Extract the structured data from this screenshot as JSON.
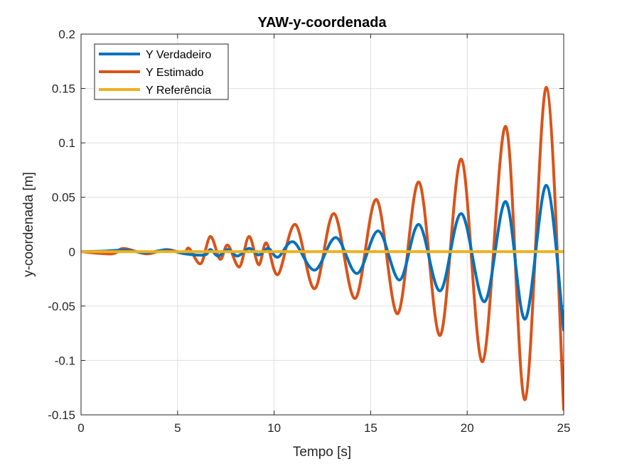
{
  "chart_data": {
    "type": "line",
    "title": "YAW-y-coordenada",
    "xlabel": "Tempo [s]",
    "ylabel": "y-coordenada [m]",
    "xlim": [
      0,
      25
    ],
    "ylim": [
      -0.15,
      0.2
    ],
    "xticks": [
      0,
      5,
      10,
      15,
      20,
      25
    ],
    "xtick_labels": [
      "0",
      "5",
      "10",
      "15",
      "20",
      "25"
    ],
    "yticks": [
      -0.15,
      -0.1,
      -0.05,
      0,
      0.05,
      0.1,
      0.15,
      0.2
    ],
    "ytick_labels": [
      "-0.15",
      "-0.1",
      "-0.05",
      "0",
      "0.05",
      "0.1",
      "0.15",
      "0.2"
    ],
    "grid": true,
    "legend_position": "top-left",
    "series": [
      {
        "name": "Y Verdadeiro",
        "color": "#0072BD",
        "points": [
          [
            0,
            0
          ],
          [
            1.2,
            0.0005
          ],
          [
            2.3,
            0.0015
          ],
          [
            3.3,
            -0.001
          ],
          [
            4.4,
            0.0015
          ],
          [
            5.4,
            -0.002
          ],
          [
            6.4,
            -0.003
          ],
          [
            6.7,
            0.002
          ],
          [
            7.1,
            -0.004
          ],
          [
            7.6,
            0.002
          ],
          [
            8.1,
            -0.004
          ],
          [
            8.7,
            0.003
          ],
          [
            9.2,
            -0.003
          ],
          [
            9.7,
            0.003
          ],
          [
            10.2,
            -0.005
          ],
          [
            11.0,
            0.009
          ],
          [
            12.1,
            -0.017
          ],
          [
            13.2,
            0.013
          ],
          [
            14.3,
            -0.02
          ],
          [
            15.4,
            0.019
          ],
          [
            16.5,
            -0.026
          ],
          [
            17.5,
            0.025
          ],
          [
            18.6,
            -0.036
          ],
          [
            19.7,
            0.035
          ],
          [
            20.9,
            -0.046
          ],
          [
            22.0,
            0.046
          ],
          [
            23.0,
            -0.062
          ],
          [
            24.1,
            0.061
          ],
          [
            25.0,
            -0.072
          ]
        ]
      },
      {
        "name": "Y Estimado",
        "color": "#D95319",
        "points": [
          [
            0,
            0
          ],
          [
            1.6,
            -0.002
          ],
          [
            2.2,
            0.003
          ],
          [
            3.4,
            -0.002
          ],
          [
            4.4,
            0.002
          ],
          [
            5.3,
            -0.001
          ],
          [
            5.6,
            0.003
          ],
          [
            6.2,
            -0.011
          ],
          [
            6.7,
            0.014
          ],
          [
            7.2,
            -0.007
          ],
          [
            7.6,
            0.006
          ],
          [
            8.2,
            -0.014
          ],
          [
            8.7,
            0.014
          ],
          [
            9.2,
            -0.012
          ],
          [
            9.6,
            0.008
          ],
          [
            10.2,
            -0.021
          ],
          [
            11.1,
            0.025
          ],
          [
            12.1,
            -0.034
          ],
          [
            13.1,
            0.035
          ],
          [
            14.2,
            -0.043
          ],
          [
            15.3,
            0.048
          ],
          [
            16.4,
            -0.057
          ],
          [
            17.5,
            0.064
          ],
          [
            18.6,
            -0.077
          ],
          [
            19.7,
            0.085
          ],
          [
            20.8,
            -0.101
          ],
          [
            22.0,
            0.115
          ],
          [
            23.0,
            -0.136
          ],
          [
            24.1,
            0.151
          ],
          [
            25.0,
            -0.145
          ]
        ]
      },
      {
        "name": "Y Referência",
        "color": "#EDB120",
        "points": [
          [
            0,
            0
          ],
          [
            25,
            0
          ]
        ]
      }
    ]
  }
}
